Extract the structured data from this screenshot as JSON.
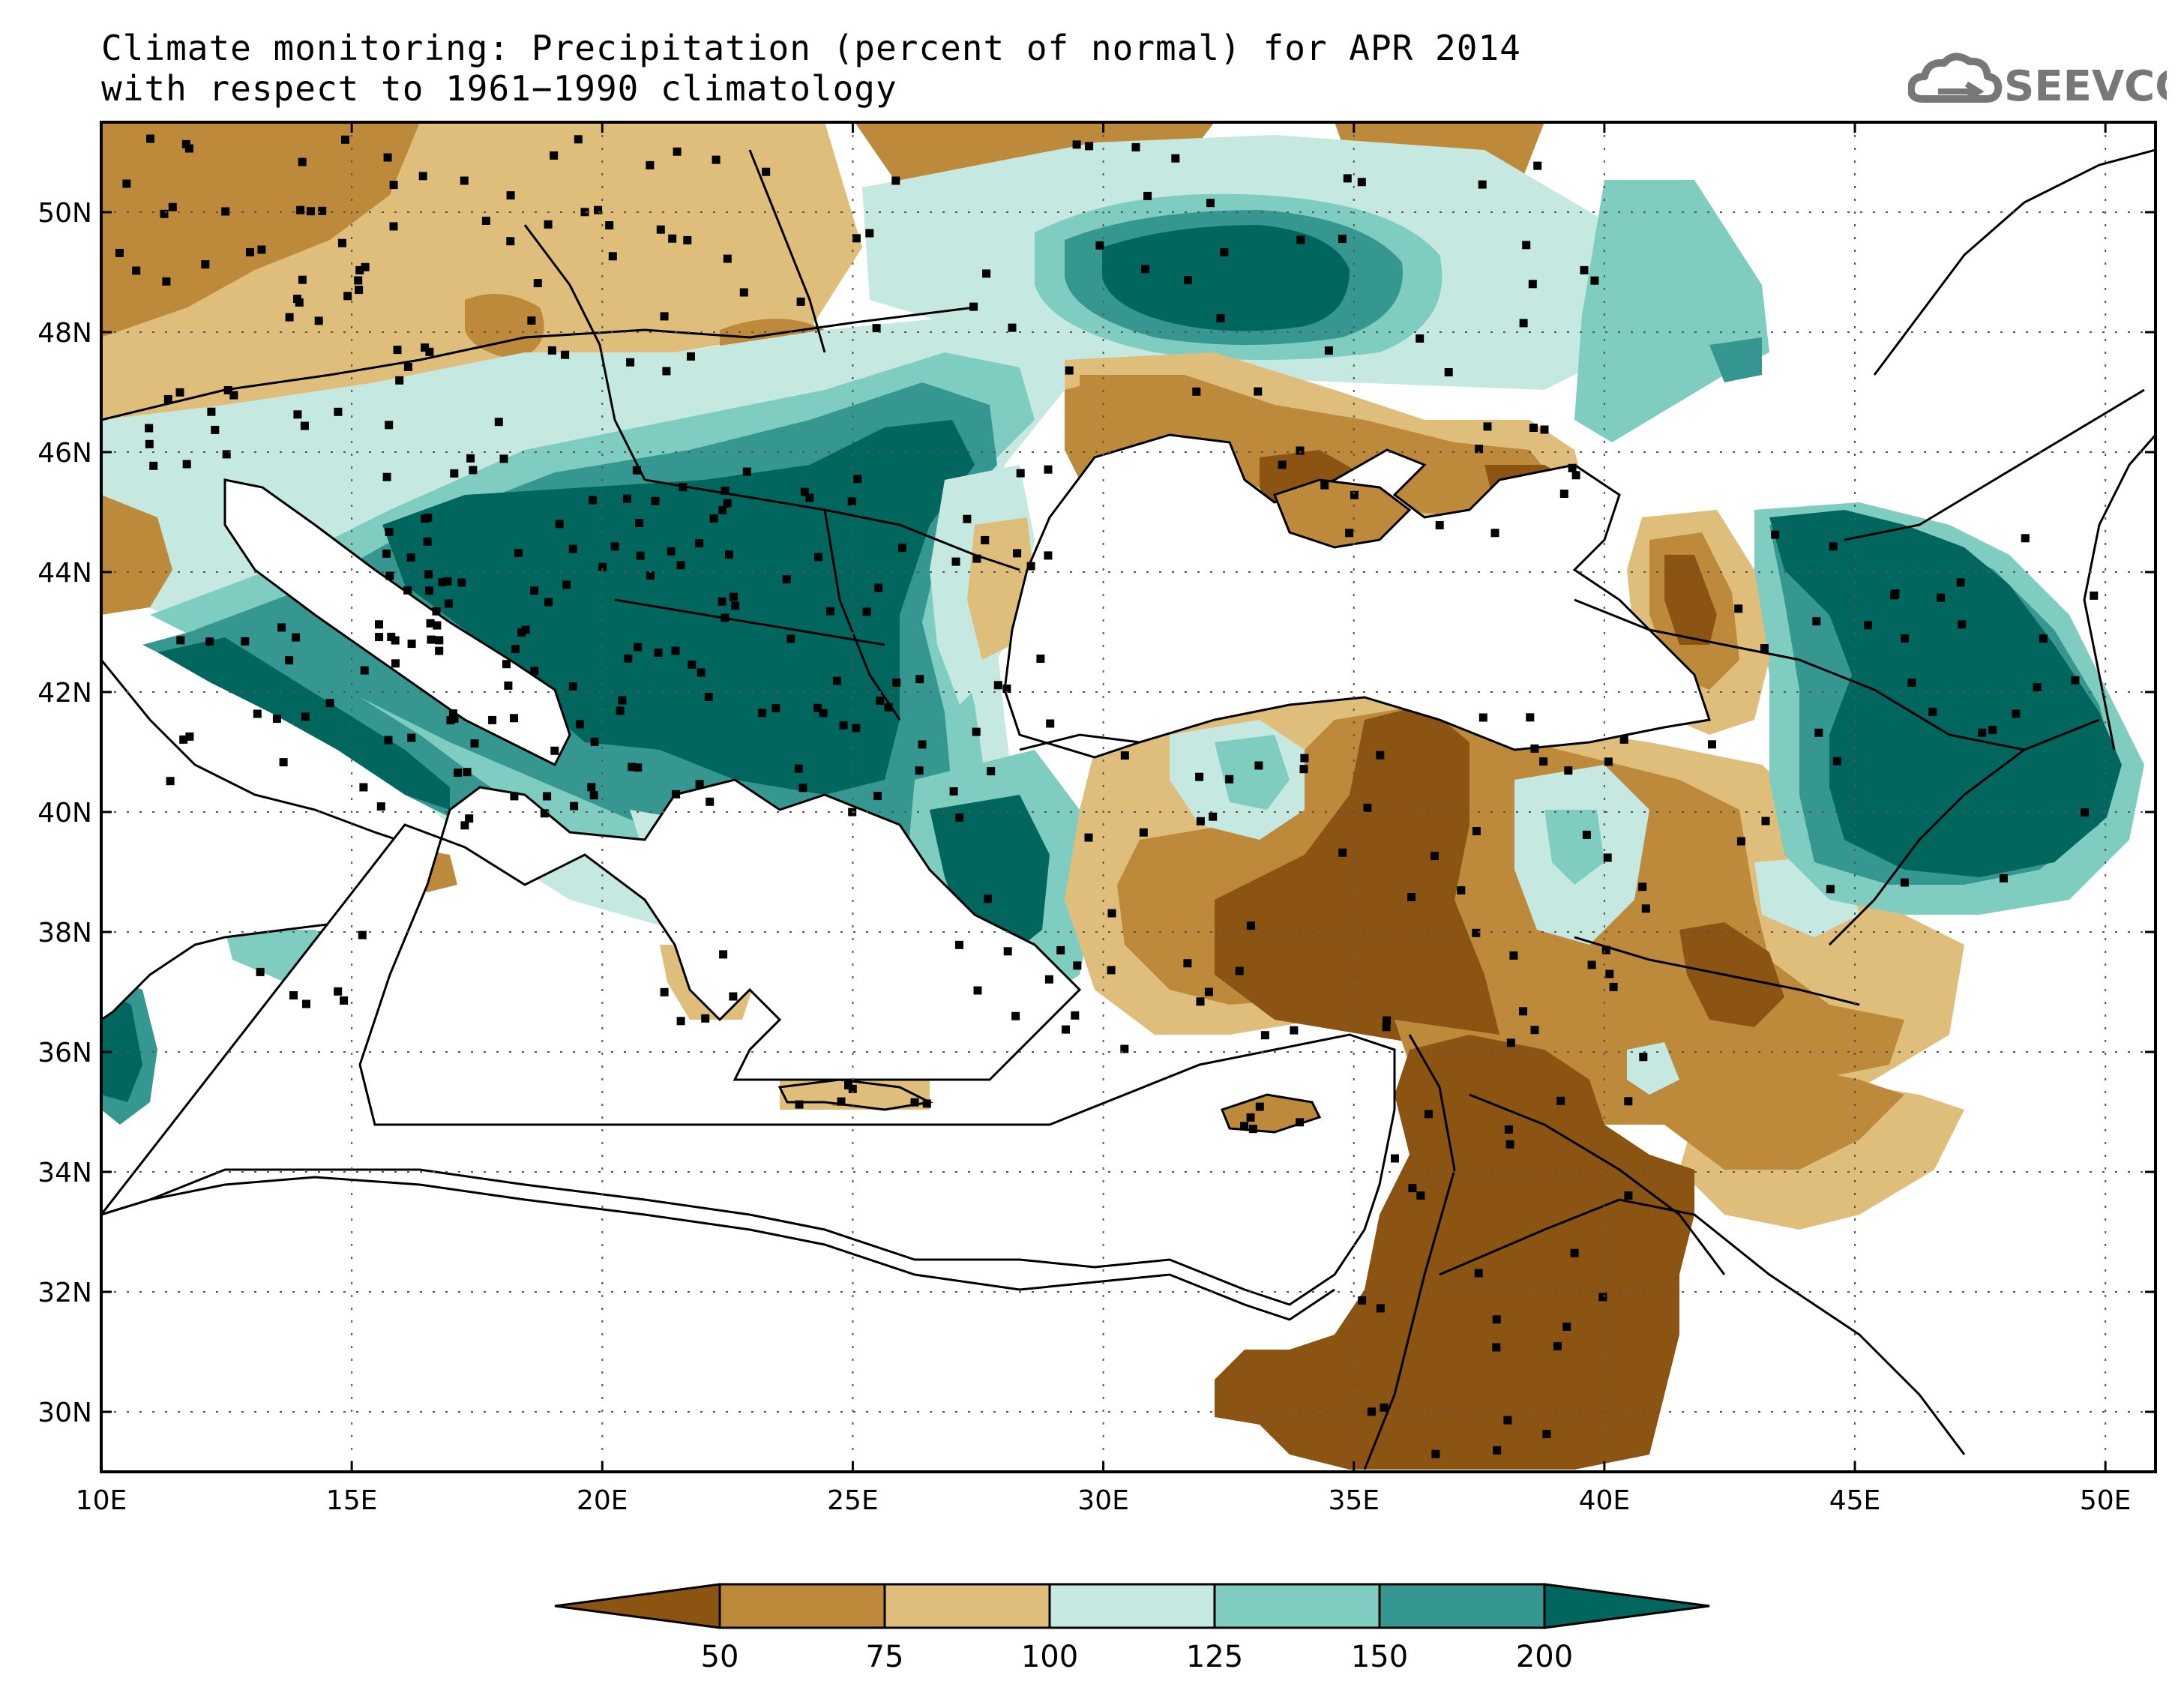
{
  "title": {
    "line1": "Climate monitoring: Precipitation (percent of normal) for APR 2014",
    "line2": "with respect to 1961−1990 climatology"
  },
  "logo": {
    "icon": "cloud-icon",
    "text": "SEEVCCC"
  },
  "map": {
    "lon_range": [
      10,
      51
    ],
    "lat_range": [
      29,
      51.5
    ],
    "lon_ticks": [
      "10E",
      "15E",
      "20E",
      "25E",
      "30E",
      "35E",
      "40E",
      "45E",
      "50E"
    ],
    "lat_ticks": [
      "30N",
      "32N",
      "34N",
      "36N",
      "38N",
      "40N",
      "42N",
      "44N",
      "46N",
      "48N",
      "50N"
    ]
  },
  "colorbar": {
    "levels": [
      "50",
      "75",
      "100",
      "125",
      "150",
      "200"
    ],
    "colors": [
      "#8b5413",
      "#bd8a3c",
      "#dfbe7c",
      "#c5e8e0",
      "#7fcdc0",
      "#35978f",
      "#01665e"
    ]
  },
  "colors": {
    "very_dry": "#8b5413",
    "dry": "#bd8a3c",
    "slightly_dry": "#dfbe7c",
    "slightly_wet": "#c5e8e0",
    "wet": "#7fcdc0",
    "very_wet": "#35978f",
    "extreme_wet": "#01665e"
  }
}
